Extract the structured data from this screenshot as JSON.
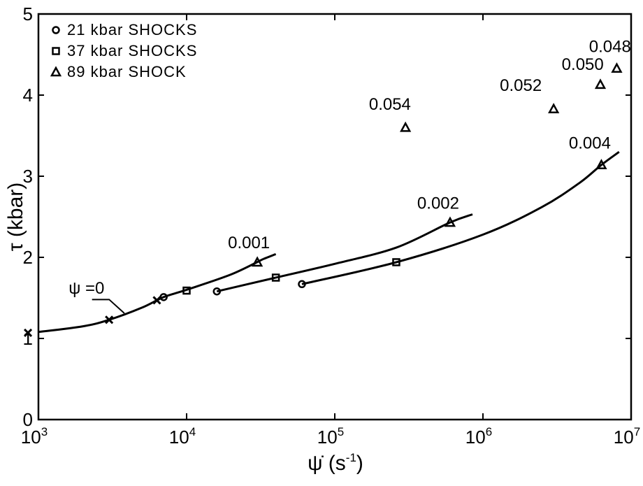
{
  "chart_data": {
    "type": "scatter",
    "x_scale": "log",
    "xlabel": {
      "main": "ψ̇ (s",
      "sup": "-1",
      "tail": ")"
    },
    "ylabel": "τ (kbar)",
    "xlim": [
      1000,
      10000000
    ],
    "ylim": [
      0,
      5
    ],
    "x_ticks": [
      {
        "value": 1000,
        "base": "10",
        "exp": "3"
      },
      {
        "value": 10000,
        "base": "10",
        "exp": "4"
      },
      {
        "value": 100000,
        "base": "10",
        "exp": "5"
      },
      {
        "value": 1000000,
        "base": "10",
        "exp": "6"
      },
      {
        "value": 10000000,
        "base": "10",
        "exp": "7"
      }
    ],
    "y_ticks": [
      {
        "value": 0,
        "label": "0"
      },
      {
        "value": 1,
        "label": "1"
      },
      {
        "value": 2,
        "label": "2"
      },
      {
        "value": 3,
        "label": "3"
      },
      {
        "value": 4,
        "label": "4"
      },
      {
        "value": 5,
        "label": "5"
      }
    ],
    "grid": false,
    "legend_position": "top-left",
    "legend": [
      {
        "marker": "circle",
        "label": "21 kbar SHOCKS"
      },
      {
        "marker": "square",
        "label": "37 kbar SHOCKS"
      },
      {
        "marker": "triangle",
        "label": "89 kbar SHOCK"
      }
    ],
    "series": [
      {
        "marker": "cross",
        "points": [
          [
            850,
            1.07
          ],
          [
            3000,
            1.23
          ],
          [
            6300,
            1.47
          ]
        ]
      },
      {
        "marker": "circle",
        "points": [
          [
            7000,
            1.51
          ],
          [
            16000,
            1.58
          ],
          [
            60000,
            1.67
          ]
        ]
      },
      {
        "marker": "square",
        "points": [
          [
            10000,
            1.59
          ],
          [
            40000,
            1.75
          ],
          [
            260000,
            1.94
          ]
        ]
      },
      {
        "marker": "triangle",
        "points": [
          [
            30000,
            1.94
          ],
          [
            600000,
            2.43
          ],
          [
            6300000,
            3.14
          ],
          [
            300000,
            3.6
          ],
          [
            3000000,
            3.83
          ],
          [
            6200000,
            4.13
          ],
          [
            8000000,
            4.33
          ]
        ]
      }
    ],
    "curves": [
      {
        "name": "ψ=0",
        "points": [
          [
            1000,
            1.08
          ],
          [
            2000,
            1.15
          ],
          [
            3000,
            1.23
          ],
          [
            5000,
            1.38
          ],
          [
            7000,
            1.51
          ],
          [
            10000,
            1.6
          ],
          [
            20000,
            1.79
          ],
          [
            33000,
            1.98
          ]
        ]
      },
      {
        "name": "0.001",
        "points": [
          [
            33000,
            1.98
          ],
          [
            40000,
            2.04
          ]
        ]
      },
      {
        "name": "0.002",
        "points": [
          [
            40000,
            1.75
          ],
          [
            100000,
            1.92
          ],
          [
            260000,
            2.12
          ],
          [
            600000,
            2.43
          ],
          [
            850000,
            2.53
          ]
        ]
      },
      {
        "name": "37 kbar",
        "points": [
          [
            16000,
            1.58
          ],
          [
            40000,
            1.75
          ]
        ]
      },
      {
        "name": "21 kbar",
        "points": [
          [
            60000,
            1.67
          ],
          [
            260000,
            1.94
          ],
          [
            1000000,
            2.28
          ],
          [
            2500000,
            2.62
          ],
          [
            4500000,
            2.92
          ],
          [
            6300000,
            3.14
          ],
          [
            8300000,
            3.3
          ]
        ]
      }
    ],
    "annotations": [
      {
        "text": "ψ =0",
        "x": 1600,
        "y": 1.55
      },
      {
        "text": "0.001",
        "x": 19000,
        "y": 2.11
      },
      {
        "text": "0.002",
        "x": 360000,
        "y": 2.6
      },
      {
        "text": "0.004",
        "x": 3800000,
        "y": 3.34
      },
      {
        "text": "0.054",
        "x": 170000,
        "y": 3.82
      },
      {
        "text": "0.052",
        "x": 1300000,
        "y": 4.05
      },
      {
        "text": "0.050",
        "x": 3400000,
        "y": 4.31
      },
      {
        "text": "0.048",
        "x": 5200000,
        "y": 4.53
      }
    ]
  }
}
